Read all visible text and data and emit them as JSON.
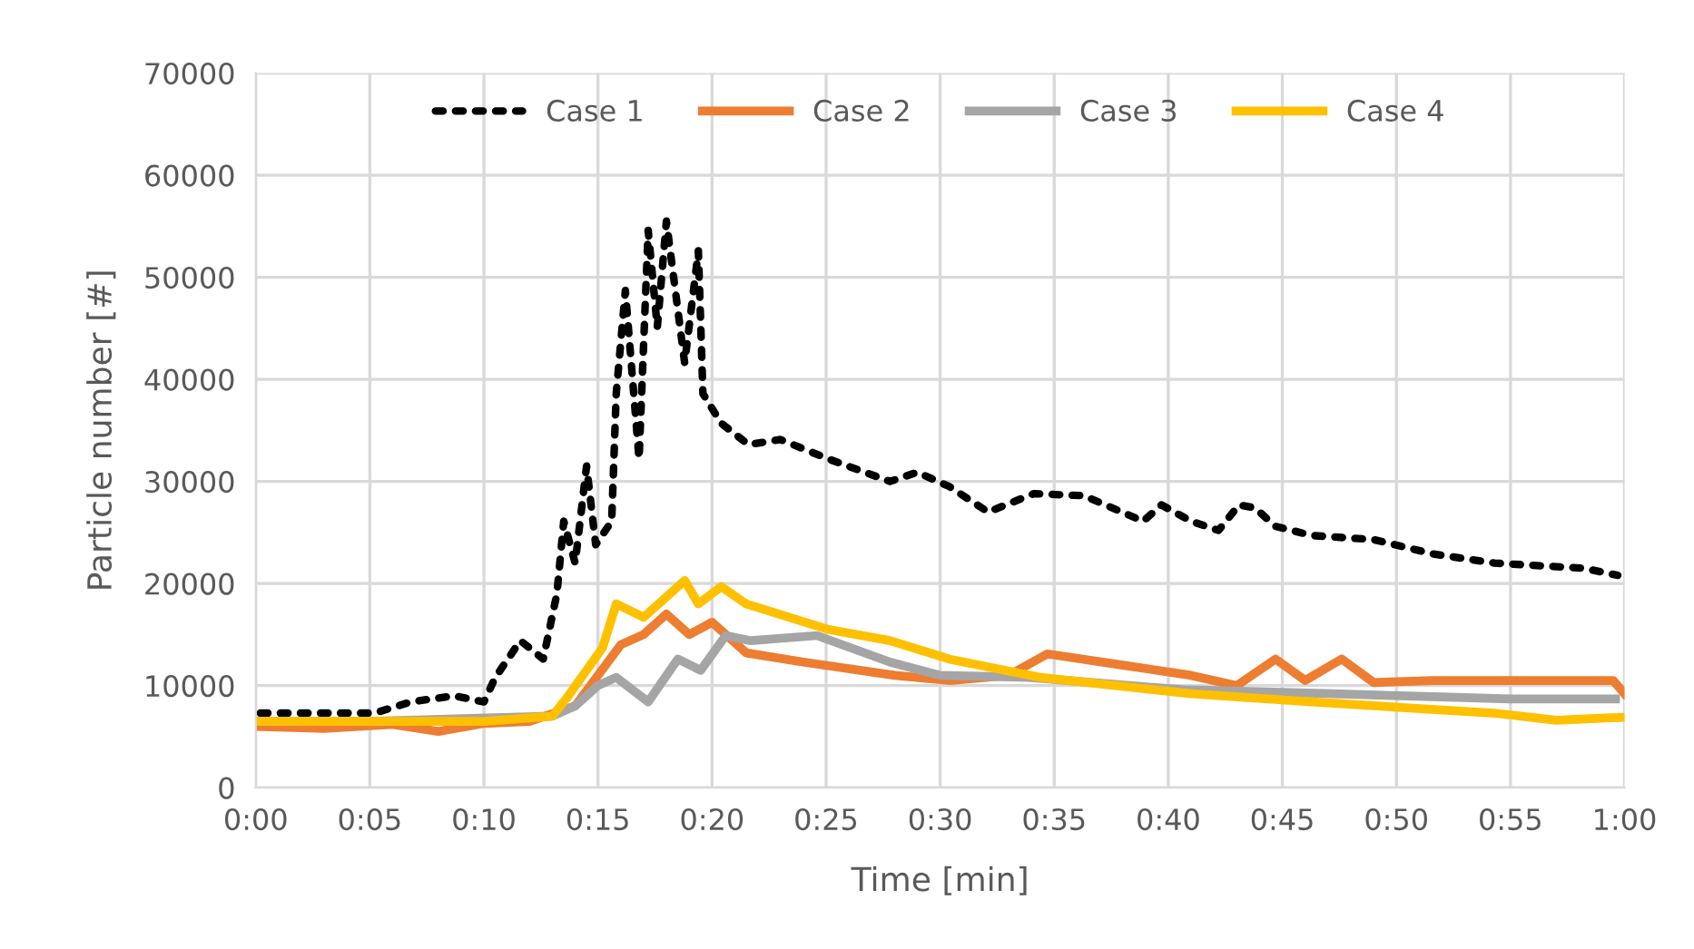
{
  "chart_data": {
    "type": "line",
    "xlabel": "Time [min]",
    "ylabel": "Particle number [#]",
    "xlim": [
      0,
      60
    ],
    "ylim": [
      0,
      70000
    ],
    "xticks": [
      {
        "value": 0,
        "label": "0:00"
      },
      {
        "value": 5,
        "label": "0:05"
      },
      {
        "value": 10,
        "label": "0:10"
      },
      {
        "value": 15,
        "label": "0:15"
      },
      {
        "value": 20,
        "label": "0:20"
      },
      {
        "value": 25,
        "label": "0:25"
      },
      {
        "value": 30,
        "label": "0:30"
      },
      {
        "value": 35,
        "label": "0:35"
      },
      {
        "value": 40,
        "label": "0:40"
      },
      {
        "value": 45,
        "label": "0:45"
      },
      {
        "value": 50,
        "label": "0:50"
      },
      {
        "value": 55,
        "label": "0:55"
      },
      {
        "value": 60,
        "label": "1:00"
      }
    ],
    "yticks": [
      0,
      10000,
      20000,
      30000,
      40000,
      50000,
      60000,
      70000
    ],
    "grid": true,
    "legend": "top",
    "series": [
      {
        "name": "Case 1",
        "color": "#000000",
        "line_style": "dotted",
        "x": [
          0.2,
          5.2,
          6.8,
          8.7,
          10,
          10.5,
          11.6,
          12.6,
          13.2,
          13.5,
          14,
          14.5,
          14.9,
          15.6,
          15.8,
          16.2,
          16.8,
          17.2,
          17.6,
          18,
          18.8,
          19.4,
          19.6,
          20.4,
          21.6,
          23,
          25.1,
          27.8,
          29,
          30.4,
          32.1,
          34.1,
          36.3,
          38.9,
          39.7,
          41,
          42.2,
          43.1,
          43.8,
          44.7,
          46.3,
          49,
          51.6,
          54.3,
          58.2,
          59.7
        ],
        "values": [
          7300,
          7300,
          8400,
          9000,
          8400,
          10800,
          14400,
          12600,
          19000,
          26100,
          22000,
          31500,
          23800,
          26100,
          38600,
          48700,
          32200,
          54600,
          45100,
          55500,
          41600,
          52600,
          38600,
          35700,
          33600,
          34100,
          32200,
          30000,
          30900,
          29500,
          27000,
          28800,
          28600,
          26100,
          27700,
          26100,
          25200,
          27700,
          27400,
          25600,
          24700,
          24300,
          22900,
          22000,
          21500,
          20800
        ]
      },
      {
        "name": "Case 2",
        "color": "#ed7d31",
        "line_style": "solid",
        "x": [
          0,
          3,
          6,
          8,
          10,
          12,
          14,
          15,
          16,
          17,
          18,
          19,
          20,
          21.5,
          24,
          28,
          30.4,
          33,
          34.7,
          38,
          41,
          43,
          44.7,
          46,
          47.6,
          49,
          51.6,
          56.4,
          59.5,
          60
        ],
        "values": [
          6000,
          5800,
          6200,
          5500,
          6300,
          6500,
          8000,
          11000,
          14000,
          15000,
          17000,
          15000,
          16200,
          13200,
          12300,
          11000,
          10500,
          11000,
          13100,
          12000,
          11000,
          10000,
          12600,
          10500,
          12600,
          10300,
          10500,
          10500,
          10500,
          9200
        ]
      },
      {
        "name": "Case 3",
        "color": "#a5a5a5",
        "line_style": "solid",
        "x": [
          0,
          5,
          13,
          14,
          15,
          15.8,
          17.2,
          18.5,
          19.5,
          20.6,
          21.7,
          24.6,
          27.8,
          30,
          33.9,
          40.6,
          47.2,
          55,
          59.6
        ],
        "values": [
          6500,
          6500,
          7000,
          8000,
          10000,
          10800,
          8400,
          12600,
          11500,
          14900,
          14400,
          14900,
          12300,
          11000,
          10800,
          9600,
          9200,
          8700,
          8700
        ]
      },
      {
        "name": "Case 4",
        "color": "#ffc000",
        "line_style": "solid",
        "x": [
          0,
          5,
          10,
          13,
          13.7,
          15.2,
          15.8,
          17,
          18.8,
          19.4,
          20.4,
          21.5,
          25.1,
          27.8,
          30.4,
          34.4,
          41,
          46.3,
          54.3,
          57,
          60
        ],
        "values": [
          6500,
          6500,
          6500,
          7000,
          9000,
          13700,
          18000,
          16700,
          20300,
          18000,
          19700,
          18000,
          15500,
          14400,
          12600,
          10800,
          9200,
          8400,
          7300,
          6600,
          6900
        ]
      }
    ]
  }
}
